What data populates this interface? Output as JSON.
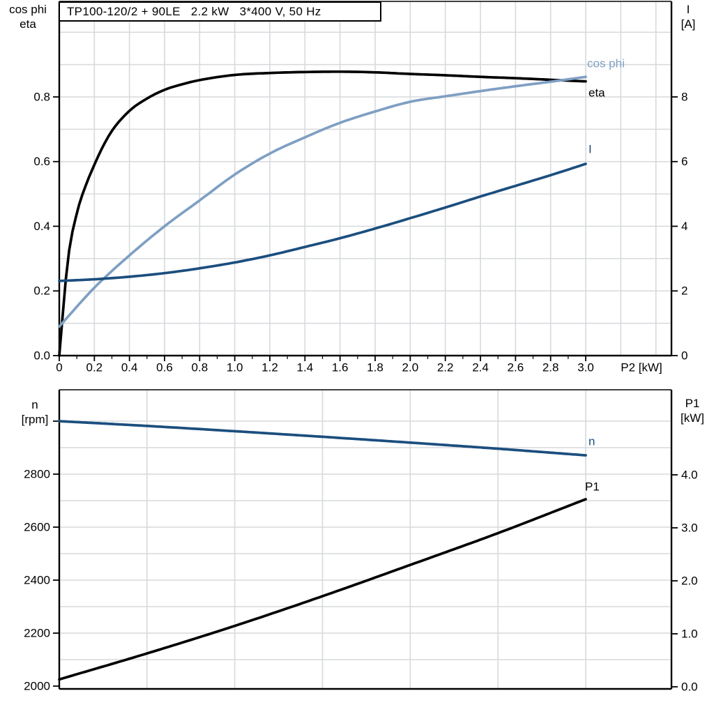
{
  "title": "TP100-120/2 + 90LE   2.2 kW   3*400 V, 50 Hz",
  "colors": {
    "black": "#000000",
    "light_blue": "#7F9FC3",
    "dark_blue": "#1B4E7E",
    "grid": "#D6D9DC",
    "background": "#FFFFFF"
  },
  "chart_data": [
    {
      "type": "line",
      "title": "TP100-120/2 + 90LE   2.2 kW   3*400 V, 50 Hz",
      "x_axis": {
        "label": "P2 [kW]",
        "min": 0,
        "max": 3.49,
        "tick_labels": [
          "0",
          "0.2",
          "0.4",
          "0.6",
          "0.8",
          "1.0",
          "1.2",
          "1.4",
          "1.6",
          "1.8",
          "2.0",
          "2.2",
          "2.4",
          "2.6",
          "2.8",
          "3.0"
        ],
        "grid_step": 0.2,
        "minor_tick_step": 0.1
      },
      "left_axis": {
        "label_line1": "cos phi",
        "label_line2": "eta",
        "min": 0.0,
        "max": 1.09,
        "tick_labels": [
          "0.0",
          "0.2",
          "0.4",
          "0.6",
          "0.8"
        ],
        "grid_step": 0.1
      },
      "right_axis": {
        "label_line1": "I",
        "label_line2": "[A]",
        "min": 0,
        "max": 10.9,
        "tick_labels": [
          "0",
          "2",
          "4",
          "6",
          "8"
        ]
      },
      "series": [
        {
          "name": "eta",
          "label": "eta",
          "axis": "left",
          "color": "#000000",
          "points": [
            [
              0,
              0
            ],
            [
              0.05,
              0.3
            ],
            [
              0.1,
              0.44
            ],
            [
              0.15,
              0.525
            ],
            [
              0.2,
              0.59
            ],
            [
              0.25,
              0.648
            ],
            [
              0.3,
              0.695
            ],
            [
              0.4,
              0.757
            ],
            [
              0.5,
              0.795
            ],
            [
              0.6,
              0.822
            ],
            [
              0.7,
              0.839
            ],
            [
              0.8,
              0.852
            ],
            [
              1.0,
              0.868
            ],
            [
              1.2,
              0.874
            ],
            [
              1.4,
              0.877
            ],
            [
              1.6,
              0.878
            ],
            [
              1.8,
              0.876
            ],
            [
              2.0,
              0.871
            ],
            [
              2.2,
              0.867
            ],
            [
              2.4,
              0.862
            ],
            [
              2.6,
              0.858
            ],
            [
              2.8,
              0.853
            ],
            [
              3.0,
              0.848
            ]
          ]
        },
        {
          "name": "cos phi",
          "label": "cos phi",
          "axis": "left",
          "color": "#7F9FC3",
          "points": [
            [
              0,
              0.09
            ],
            [
              0.2,
              0.21
            ],
            [
              0.4,
              0.31
            ],
            [
              0.6,
              0.4
            ],
            [
              0.8,
              0.48
            ],
            [
              1.0,
              0.56
            ],
            [
              1.2,
              0.625
            ],
            [
              1.4,
              0.675
            ],
            [
              1.6,
              0.72
            ],
            [
              1.8,
              0.755
            ],
            [
              2.0,
              0.785
            ],
            [
              2.2,
              0.802
            ],
            [
              2.4,
              0.818
            ],
            [
              2.6,
              0.833
            ],
            [
              2.8,
              0.847
            ],
            [
              3.0,
              0.862
            ]
          ]
        },
        {
          "name": "I",
          "label": "I",
          "axis": "right",
          "color": "#1B4E7E",
          "points": [
            [
              0,
              2.31
            ],
            [
              0.2,
              2.36
            ],
            [
              0.4,
              2.44
            ],
            [
              0.6,
              2.55
            ],
            [
              0.8,
              2.7
            ],
            [
              1.0,
              2.88
            ],
            [
              1.2,
              3.1
            ],
            [
              1.4,
              3.36
            ],
            [
              1.6,
              3.63
            ],
            [
              1.8,
              3.93
            ],
            [
              2.0,
              4.25
            ],
            [
              2.2,
              4.58
            ],
            [
              2.4,
              4.92
            ],
            [
              2.6,
              5.25
            ],
            [
              2.8,
              5.58
            ],
            [
              3.0,
              5.93
            ]
          ]
        }
      ]
    },
    {
      "type": "line",
      "x_axis": {
        "label": "",
        "min": 0,
        "max": 3.49,
        "tick_labels": [],
        "grid_step": 0.5
      },
      "left_axis": {
        "label_line1": "n",
        "label_line2": "[rpm]",
        "min": 2000,
        "max": 3100,
        "tick_labels": [
          "2000",
          "2200",
          "2400",
          "2600",
          "2800"
        ],
        "grid_step": 100
      },
      "right_axis": {
        "label_line1": "P1",
        "label_line2": "[kW]",
        "min": 0.0,
        "max": 5.5,
        "tick_labels": [
          "0.0",
          "1.0",
          "2.0",
          "3.0",
          "4.0"
        ]
      },
      "series": [
        {
          "name": "n",
          "label": "n",
          "axis": "left",
          "color": "#1B4E7E",
          "points": [
            [
              0,
              3000
            ],
            [
              0.5,
              2982
            ],
            [
              1.0,
              2962
            ],
            [
              1.5,
              2941
            ],
            [
              2.0,
              2919
            ],
            [
              2.5,
              2896
            ],
            [
              3.0,
              2871
            ]
          ]
        },
        {
          "name": "P1",
          "label": "P1",
          "axis": "right",
          "color": "#000000",
          "points": [
            [
              0,
              0.14
            ],
            [
              0.5,
              0.63
            ],
            [
              1.0,
              1.15
            ],
            [
              1.5,
              1.71
            ],
            [
              2.0,
              2.3
            ],
            [
              2.5,
              2.9
            ],
            [
              3.0,
              3.54
            ]
          ]
        }
      ]
    }
  ]
}
